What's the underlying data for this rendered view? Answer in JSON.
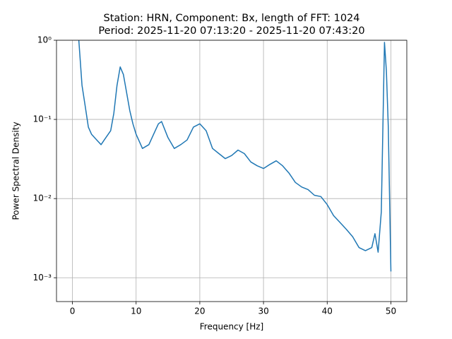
{
  "chart_data": {
    "type": "line",
    "title": "Station: HRN, Component: Bx, length of FFT: 1024",
    "subtitle": "Period: 2025-11-20 07:13:20 - 2025-11-20 07:43:20",
    "x_label": "Frequency [Hz]",
    "y_label": "Power Spectral Density",
    "x": [
      1.0,
      1.5,
      2,
      2.5,
      3,
      4,
      4.5,
      5,
      6,
      6.5,
      7,
      7.5,
      8,
      8.5,
      9,
      9.5,
      10,
      11,
      12,
      13,
      13.5,
      14,
      15,
      16,
      17,
      18,
      19,
      20,
      21,
      22,
      23,
      24,
      25,
      26,
      27,
      28,
      29,
      30,
      31,
      32,
      33,
      34,
      35,
      36,
      37,
      38,
      39,
      40,
      41,
      42,
      43,
      44,
      45,
      46,
      47,
      47.5,
      48,
      48.5,
      49,
      49.3,
      49.6,
      50
    ],
    "series": [
      {
        "name": "Bx",
        "color": "#1f77b4",
        "values": [
          1.0,
          0.27,
          0.148,
          0.08,
          0.065,
          0.053,
          0.048,
          0.055,
          0.072,
          0.12,
          0.27,
          0.46,
          0.37,
          0.22,
          0.13,
          0.088,
          0.065,
          0.043,
          0.048,
          0.072,
          0.088,
          0.094,
          0.059,
          0.043,
          0.048,
          0.055,
          0.08,
          0.088,
          0.072,
          0.043,
          0.037,
          0.032,
          0.035,
          0.041,
          0.037,
          0.029,
          0.026,
          0.024,
          0.027,
          0.03,
          0.026,
          0.021,
          0.016,
          0.014,
          0.013,
          0.011,
          0.0106,
          0.0084,
          0.0061,
          0.005,
          0.0041,
          0.0033,
          0.0024,
          0.0022,
          0.0024,
          0.0036,
          0.0021,
          0.0068,
          0.94,
          0.41,
          0.08,
          0.0012
        ]
      }
    ],
    "xlim": [
      -2.5,
      52.5
    ],
    "ylim": [
      0.0005,
      1
    ],
    "xticks": [
      0,
      10,
      20,
      30,
      40,
      50
    ],
    "yticks": [
      {
        "value": 0.001,
        "label": "10⁻³"
      },
      {
        "value": 0.01,
        "label": "10⁻²"
      },
      {
        "value": 0.1,
        "label": "10⁻¹"
      },
      {
        "value": 1,
        "label": "10⁰"
      }
    ],
    "ylog": true,
    "grid": true
  }
}
